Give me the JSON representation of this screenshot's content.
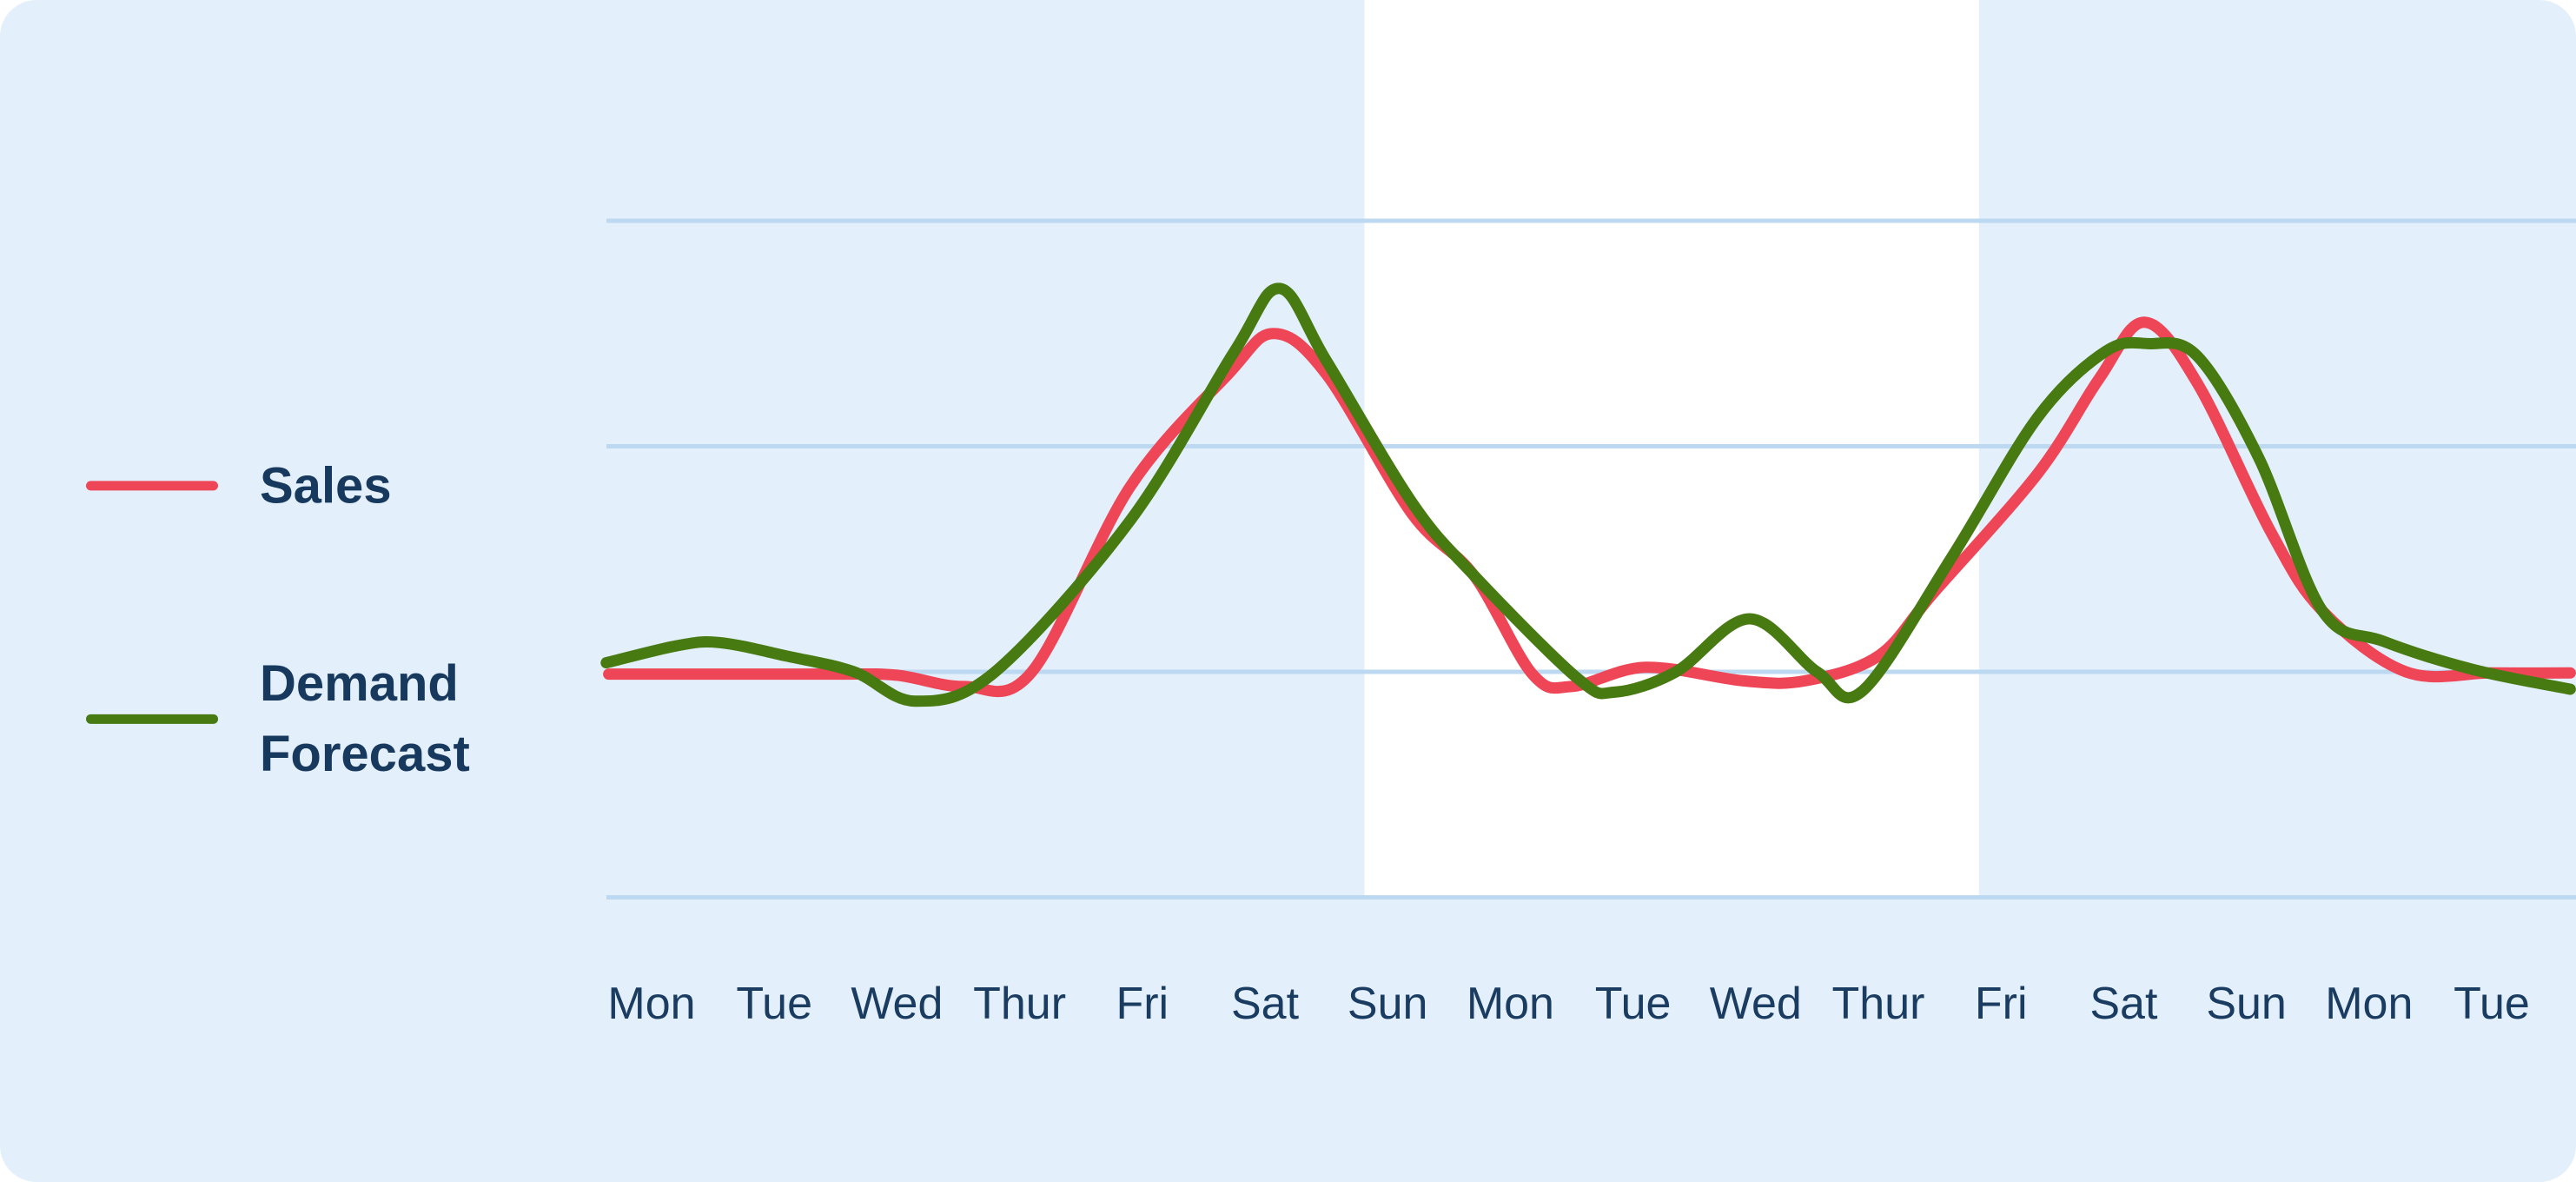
{
  "legend": {
    "items": [
      {
        "label": "Sales",
        "color": "#EE4656"
      },
      {
        "label": "Demand Forecast",
        "color": "#477A11"
      }
    ]
  },
  "chart_data": {
    "type": "line",
    "title": "",
    "xlabel": "",
    "ylabel": "",
    "x_tick_labels": [
      "Mon",
      "Tue",
      "Wed",
      "Thur",
      "Fri",
      "Sat",
      "Sun",
      "Mon",
      "Tue",
      "Wed",
      "Thur",
      "Fri",
      "Sat",
      "Sun",
      "Mon",
      "Tue"
    ],
    "y_axis_visible": false,
    "y_unit": "relative (baseline = 0, one gridline spacing = 1)",
    "y_gridline_values": [
      -1,
      0,
      1,
      2
    ],
    "grid": "horizontal only",
    "legend_position": "left",
    "highlight_band": {
      "start_day_index": 5.81,
      "end_day_index": 10.82,
      "color": "#FFFFFF",
      "covers": "Sun through Thur of second week"
    },
    "series": [
      {
        "name": "Sales",
        "color": "#EE4656",
        "points": [
          [
            -0.35,
            -0.01
          ],
          [
            0.6,
            -0.01
          ],
          [
            1.5,
            -0.01
          ],
          [
            2.0,
            -0.015
          ],
          [
            2.55,
            -0.065
          ],
          [
            3.1,
            0.0
          ],
          [
            3.9,
            0.82
          ],
          [
            4.7,
            1.32
          ],
          [
            5.07,
            1.5
          ],
          [
            5.5,
            1.32
          ],
          [
            6.2,
            0.7
          ],
          [
            6.7,
            0.43
          ],
          [
            7.18,
            -0.01
          ],
          [
            7.5,
            -0.065
          ],
          [
            8.1,
            0.02
          ],
          [
            8.9,
            -0.04
          ],
          [
            9.4,
            -0.04
          ],
          [
            10.0,
            0.07
          ],
          [
            10.45,
            0.35
          ],
          [
            11.3,
            0.88
          ],
          [
            11.8,
            1.3
          ],
          [
            12.17,
            1.55
          ],
          [
            12.6,
            1.28
          ],
          [
            13.2,
            0.62
          ],
          [
            13.62,
            0.27
          ],
          [
            14.3,
            0.0
          ],
          [
            15.0,
            -0.005
          ],
          [
            15.64,
            -0.005
          ]
        ]
      },
      {
        "name": "Demand Forecast",
        "color": "#477A11",
        "points": [
          [
            -0.37,
            0.04
          ],
          [
            0.2,
            0.115
          ],
          [
            0.55,
            0.13
          ],
          [
            1.1,
            0.07
          ],
          [
            1.65,
            0.0
          ],
          [
            2.15,
            -0.13
          ],
          [
            2.8,
            0.0
          ],
          [
            3.9,
            0.67
          ],
          [
            4.75,
            1.42
          ],
          [
            5.12,
            1.7
          ],
          [
            5.5,
            1.38
          ],
          [
            6.2,
            0.75
          ],
          [
            6.7,
            0.43
          ],
          [
            7.55,
            -0.03
          ],
          [
            7.85,
            -0.09
          ],
          [
            8.35,
            0.0
          ],
          [
            8.95,
            0.235
          ],
          [
            9.5,
            0.0
          ],
          [
            9.87,
            -0.085
          ],
          [
            10.6,
            0.51
          ],
          [
            11.3,
            1.13
          ],
          [
            11.85,
            1.42
          ],
          [
            12.2,
            1.455
          ],
          [
            12.6,
            1.4
          ],
          [
            13.1,
            0.95
          ],
          [
            13.62,
            0.27
          ],
          [
            14.12,
            0.135
          ],
          [
            14.85,
            0.01
          ],
          [
            15.64,
            -0.077
          ]
        ]
      }
    ],
    "colors": {
      "card_background": "#E4EFFC",
      "page_background": "#FFFFFF",
      "gridline": "#BDD9F2",
      "axis_label_text": "#1A3C61"
    }
  }
}
